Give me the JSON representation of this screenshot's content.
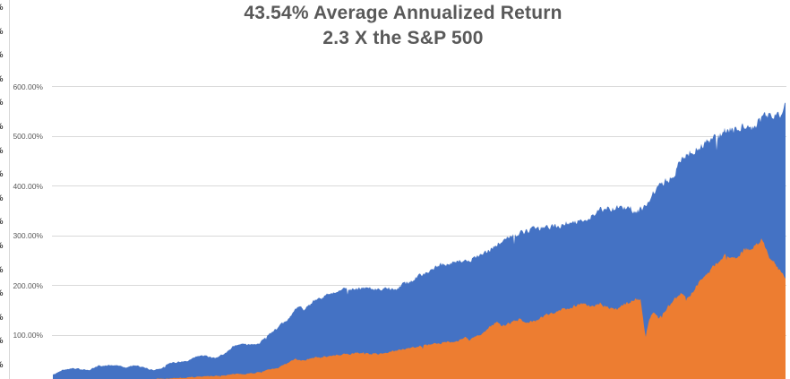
{
  "title": {
    "line1": "43.54% Average Annualized Return",
    "line2": "2.3 X the S&P 500"
  },
  "y_axis": {
    "tick_labels": [
      "600.00%",
      "500.00%",
      "400.00%",
      "300.00%",
      "200.00%",
      "100.00%"
    ],
    "tick_values": [
      600,
      500,
      400,
      300,
      200,
      100
    ]
  },
  "left_edge_artifact": {
    "glyph": "%",
    "count": 16
  },
  "colors": {
    "blue_area": "#4472C4",
    "orange_area": "#ED7D31",
    "gridline": "#D9D9D9",
    "title_text": "#595959",
    "axis_text": "#595959"
  },
  "chart_data": {
    "type": "area",
    "title": "43.54% Average Annualized Return",
    "subtitle": "2.3 X the S&P 500",
    "xlabel": "",
    "ylabel": "",
    "ylim": [
      0,
      650
    ],
    "grid": true,
    "legend_position": "none",
    "x_axis_labels_visible": false,
    "bottom_of_plot_cropped": true,
    "units": "cumulative return percent",
    "series": [
      {
        "name": "blue-area",
        "color": "#4472C4",
        "points": [
          [
            0.0,
            20
          ],
          [
            0.013,
            30
          ],
          [
            0.026,
            34
          ],
          [
            0.038,
            31
          ],
          [
            0.05,
            30
          ],
          [
            0.062,
            38
          ],
          [
            0.075,
            39
          ],
          [
            0.087,
            40
          ],
          [
            0.099,
            35
          ],
          [
            0.111,
            39
          ],
          [
            0.123,
            35
          ],
          [
            0.136,
            30
          ],
          [
            0.148,
            33
          ],
          [
            0.16,
            44
          ],
          [
            0.172,
            46
          ],
          [
            0.184,
            47
          ],
          [
            0.197,
            57
          ],
          [
            0.209,
            59
          ],
          [
            0.221,
            53
          ],
          [
            0.233,
            62
          ],
          [
            0.246,
            77
          ],
          [
            0.258,
            84
          ],
          [
            0.271,
            80
          ],
          [
            0.283,
            86
          ],
          [
            0.295,
            102
          ],
          [
            0.307,
            116
          ],
          [
            0.319,
            128
          ],
          [
            0.325,
            140
          ],
          [
            0.331,
            152
          ],
          [
            0.337,
            158
          ],
          [
            0.343,
            148
          ],
          [
            0.355,
            170
          ],
          [
            0.368,
            175
          ],
          [
            0.38,
            186
          ],
          [
            0.392,
            190
          ],
          [
            0.404,
            194
          ],
          [
            0.417,
            192
          ],
          [
            0.429,
            195
          ],
          [
            0.441,
            192
          ],
          [
            0.453,
            196
          ],
          [
            0.466,
            194
          ],
          [
            0.478,
            202
          ],
          [
            0.49,
            211
          ],
          [
            0.502,
            220
          ],
          [
            0.514,
            231
          ],
          [
            0.526,
            240
          ],
          [
            0.539,
            244
          ],
          [
            0.551,
            247
          ],
          [
            0.563,
            249
          ],
          [
            0.575,
            254
          ],
          [
            0.587,
            262
          ],
          [
            0.6,
            275
          ],
          [
            0.612,
            288
          ],
          [
            0.624,
            298
          ],
          [
            0.636,
            304
          ],
          [
            0.649,
            310
          ],
          [
            0.661,
            314
          ],
          [
            0.673,
            317
          ],
          [
            0.686,
            319
          ],
          [
            0.698,
            323
          ],
          [
            0.71,
            331
          ],
          [
            0.722,
            327
          ],
          [
            0.735,
            341
          ],
          [
            0.747,
            352
          ],
          [
            0.759,
            354
          ],
          [
            0.771,
            357
          ],
          [
            0.784,
            359
          ],
          [
            0.796,
            348
          ],
          [
            0.802,
            352
          ],
          [
            0.808,
            358
          ],
          [
            0.814,
            372
          ],
          [
            0.82,
            390
          ],
          [
            0.833,
            405
          ],
          [
            0.845,
            418
          ],
          [
            0.857,
            450
          ],
          [
            0.869,
            468
          ],
          [
            0.881,
            477
          ],
          [
            0.894,
            492
          ],
          [
            0.906,
            499
          ],
          [
            0.918,
            513
          ],
          [
            0.93,
            512
          ],
          [
            0.943,
            526
          ],
          [
            0.955,
            516
          ],
          [
            0.967,
            537
          ],
          [
            0.979,
            544
          ],
          [
            0.992,
            546
          ],
          [
            1.0,
            559
          ]
        ]
      },
      {
        "name": "orange-area",
        "color": "#ED7D31",
        "points": [
          [
            0.0,
            0
          ],
          [
            0.03,
            2
          ],
          [
            0.06,
            4
          ],
          [
            0.09,
            7
          ],
          [
            0.12,
            9
          ],
          [
            0.142,
            12
          ],
          [
            0.16,
            13
          ],
          [
            0.172,
            14
          ],
          [
            0.184,
            15
          ],
          [
            0.197,
            16
          ],
          [
            0.209,
            17
          ],
          [
            0.221,
            18
          ],
          [
            0.233,
            19
          ],
          [
            0.246,
            21
          ],
          [
            0.258,
            22
          ],
          [
            0.271,
            23
          ],
          [
            0.283,
            26
          ],
          [
            0.295,
            30
          ],
          [
            0.307,
            34
          ],
          [
            0.319,
            42
          ],
          [
            0.331,
            52
          ],
          [
            0.343,
            48
          ],
          [
            0.355,
            55
          ],
          [
            0.368,
            56
          ],
          [
            0.38,
            58
          ],
          [
            0.392,
            60
          ],
          [
            0.404,
            62
          ],
          [
            0.417,
            65
          ],
          [
            0.429,
            63
          ],
          [
            0.441,
            62
          ],
          [
            0.453,
            64
          ],
          [
            0.466,
            68
          ],
          [
            0.478,
            72
          ],
          [
            0.49,
            76
          ],
          [
            0.502,
            78
          ],
          [
            0.514,
            80
          ],
          [
            0.526,
            83
          ],
          [
            0.539,
            86
          ],
          [
            0.551,
            88
          ],
          [
            0.563,
            95
          ],
          [
            0.569,
            90
          ],
          [
            0.575,
            96
          ],
          [
            0.587,
            104
          ],
          [
            0.6,
            120
          ],
          [
            0.606,
            128
          ],
          [
            0.612,
            118
          ],
          [
            0.618,
            121
          ],
          [
            0.624,
            124
          ],
          [
            0.63,
            128
          ],
          [
            0.636,
            132
          ],
          [
            0.642,
            129
          ],
          [
            0.649,
            126
          ],
          [
            0.661,
            130
          ],
          [
            0.673,
            140
          ],
          [
            0.686,
            148
          ],
          [
            0.698,
            152
          ],
          [
            0.71,
            158
          ],
          [
            0.722,
            165
          ],
          [
            0.735,
            158
          ],
          [
            0.747,
            164
          ],
          [
            0.759,
            155
          ],
          [
            0.771,
            152
          ],
          [
            0.778,
            160
          ],
          [
            0.784,
            164
          ],
          [
            0.79,
            170
          ],
          [
            0.796,
            172
          ],
          [
            0.802,
            174
          ],
          [
            0.806,
            130
          ],
          [
            0.809,
            93
          ],
          [
            0.812,
            120
          ],
          [
            0.816,
            138
          ],
          [
            0.82,
            147
          ],
          [
            0.827,
            134
          ],
          [
            0.833,
            147
          ],
          [
            0.845,
            167
          ],
          [
            0.851,
            175
          ],
          [
            0.857,
            183
          ],
          [
            0.863,
            178
          ],
          [
            0.869,
            176
          ],
          [
            0.875,
            192
          ],
          [
            0.881,
            205
          ],
          [
            0.894,
            225
          ],
          [
            0.906,
            245
          ],
          [
            0.918,
            262
          ],
          [
            0.93,
            252
          ],
          [
            0.943,
            270
          ],
          [
            0.955,
            278
          ],
          [
            0.967,
            290
          ],
          [
            0.973,
            278
          ],
          [
            0.979,
            255
          ],
          [
            0.985,
            248
          ],
          [
            0.992,
            230
          ],
          [
            1.0,
            218
          ]
        ]
      }
    ]
  }
}
